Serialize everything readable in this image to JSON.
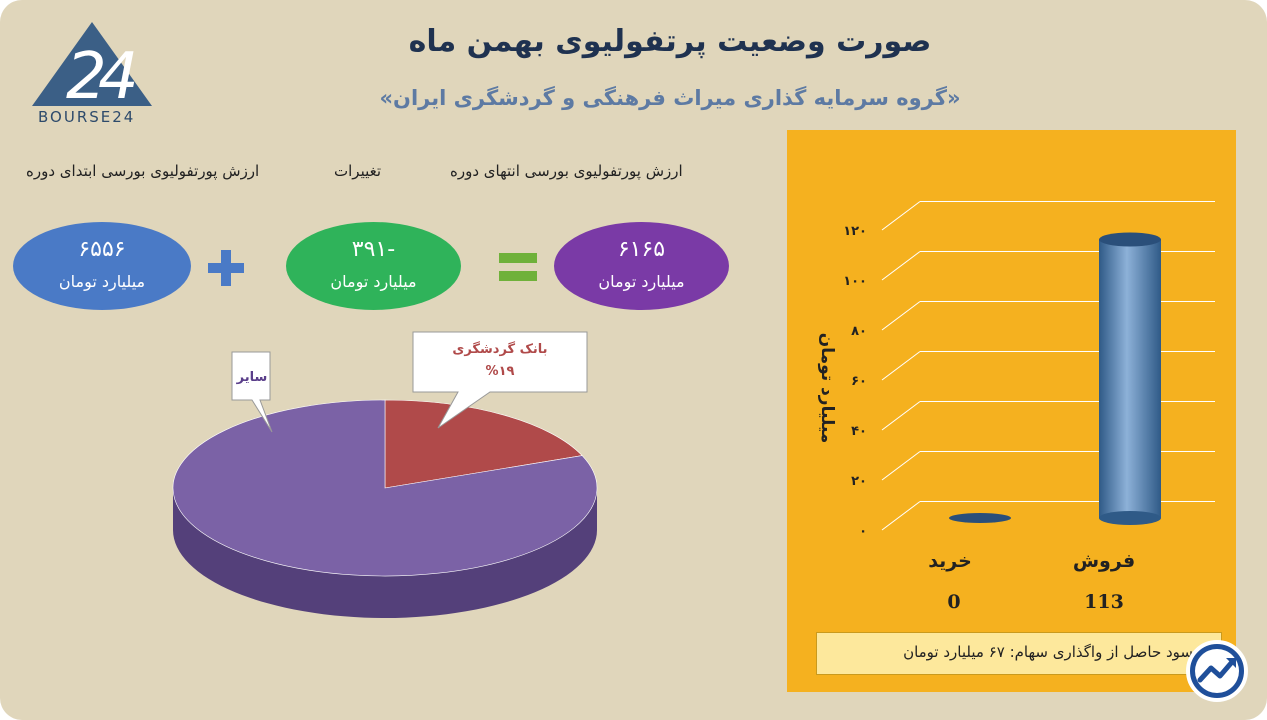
{
  "header": {
    "title": "صورت وضعیت پرتفولیوی بهمن ماه",
    "subtitle": "«گروه سرمایه گذاری میراث فرهنگی و گردشگری ایران»",
    "logo_text": "BOURSE24"
  },
  "summary": {
    "start_label": "ارزش پورتفولیوی بورسی ابتدای دوره",
    "change_label": "تغییرات",
    "end_label": "ارزش پورتفولیوی بورسی انتهای دوره",
    "start_value": "۶۵۵۶",
    "change_value": "-۳۹۱",
    "end_value": "۶۱۶۵",
    "unit": "میلیارد تومان",
    "colors": {
      "start": "#4a7ac6",
      "change": "#2fb35a",
      "end": "#7a3aa6",
      "operator": "#4a7ac6",
      "equals": "#6fb13a"
    }
  },
  "pie": {
    "type": "pie",
    "slices": [
      {
        "label": "بانک گردشگری",
        "display": "%۱۹",
        "value": 19,
        "color": "#b04a4a"
      },
      {
        "label": "سایر",
        "value": 81,
        "color": "#7b62a6"
      }
    ]
  },
  "chart_data": {
    "type": "bar",
    "categories": [
      "خرید",
      "فروش"
    ],
    "values": [
      0,
      113
    ],
    "value_labels": [
      "0",
      "113"
    ],
    "ylabel": "میلیارد تومان",
    "ylim": [
      0,
      120
    ],
    "yticks": [
      "۰",
      "۲۰",
      "۴۰",
      "۶۰",
      "۸۰",
      "۱۰۰",
      "۱۲۰"
    ],
    "grid": true,
    "bar_color": "#4a7aae"
  },
  "footer": {
    "profit_text": "سود حاصل از واگذاری سهام:  ۶۷ میلیارد تومان",
    "icon": "trend-arrow-icon"
  }
}
